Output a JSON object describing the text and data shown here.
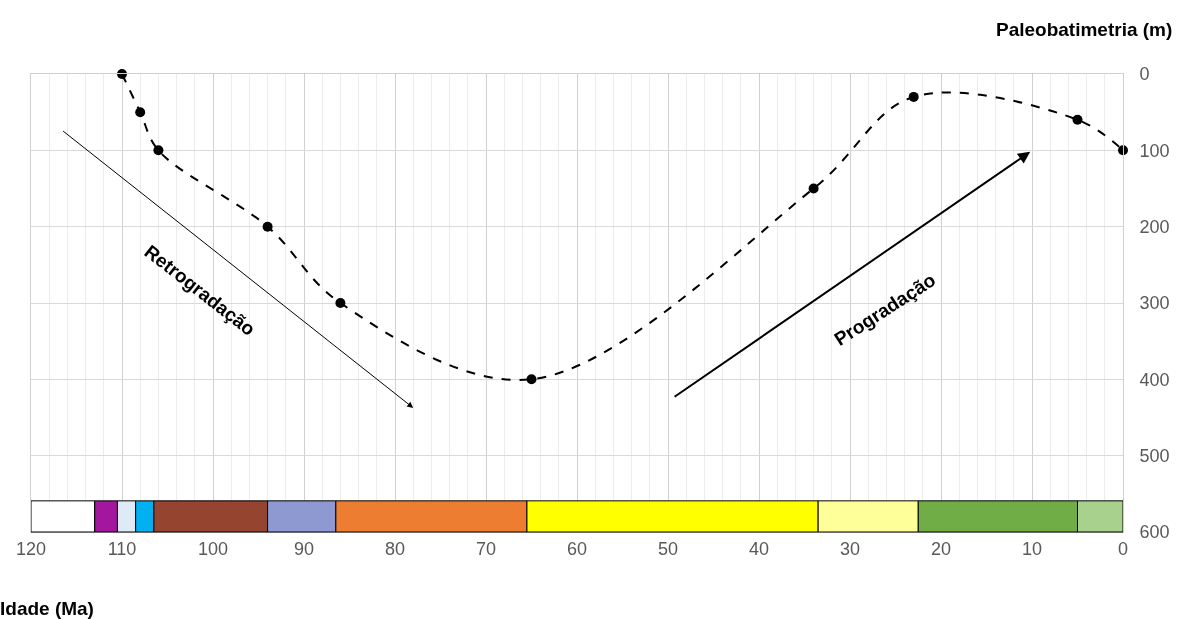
{
  "chart_data": {
    "type": "line",
    "xlabel": "Idade (Ma)",
    "ylabel": "Paleobatimetria (m)",
    "x": [
      110,
      108,
      106,
      94,
      86,
      65,
      34,
      23,
      5,
      0
    ],
    "series": [
      {
        "color": "#000000",
        "values": [
          0,
          50,
          100,
          200,
          300,
          400,
          150,
          30,
          60,
          100
        ]
      }
    ],
    "xlim": [
      120,
      0
    ],
    "xticks": [
      120,
      110,
      100,
      90,
      80,
      70,
      60,
      50,
      40,
      30,
      20,
      10,
      0
    ],
    "ylim": [
      600,
      0
    ],
    "yticks": [
      0,
      100,
      200,
      300,
      400,
      500,
      600
    ],
    "grid": true,
    "marker": "circle",
    "line_style": "dashed",
    "bands": [
      {
        "axis": "x",
        "from": 120,
        "to": 113,
        "color": "#ffffff"
      },
      {
        "axis": "x",
        "from": 113,
        "to": 110.5,
        "color": "#a3169e"
      },
      {
        "axis": "x",
        "from": 110.5,
        "to": 108.5,
        "color": "#deebf7"
      },
      {
        "axis": "x",
        "from": 108.5,
        "to": 106.5,
        "color": "#00b0f0"
      },
      {
        "axis": "x",
        "from": 106.5,
        "to": 94,
        "color": "#954430"
      },
      {
        "axis": "x",
        "from": 94,
        "to": 86.5,
        "color": "#8e99d1"
      },
      {
        "axis": "x",
        "from": 86.5,
        "to": 65.5,
        "color": "#ed7d31"
      },
      {
        "axis": "x",
        "from": 65.5,
        "to": 33.5,
        "color": "#ffff00"
      },
      {
        "axis": "x",
        "from": 33.5,
        "to": 22.5,
        "color": "#ffff99"
      },
      {
        "axis": "x",
        "from": 22.5,
        "to": 5,
        "color": "#70ad47"
      },
      {
        "axis": "x",
        "from": 5,
        "to": 0,
        "color": "#a9d18e"
      }
    ],
    "annotations": [
      "Retrogradação",
      "Progradação"
    ]
  }
}
